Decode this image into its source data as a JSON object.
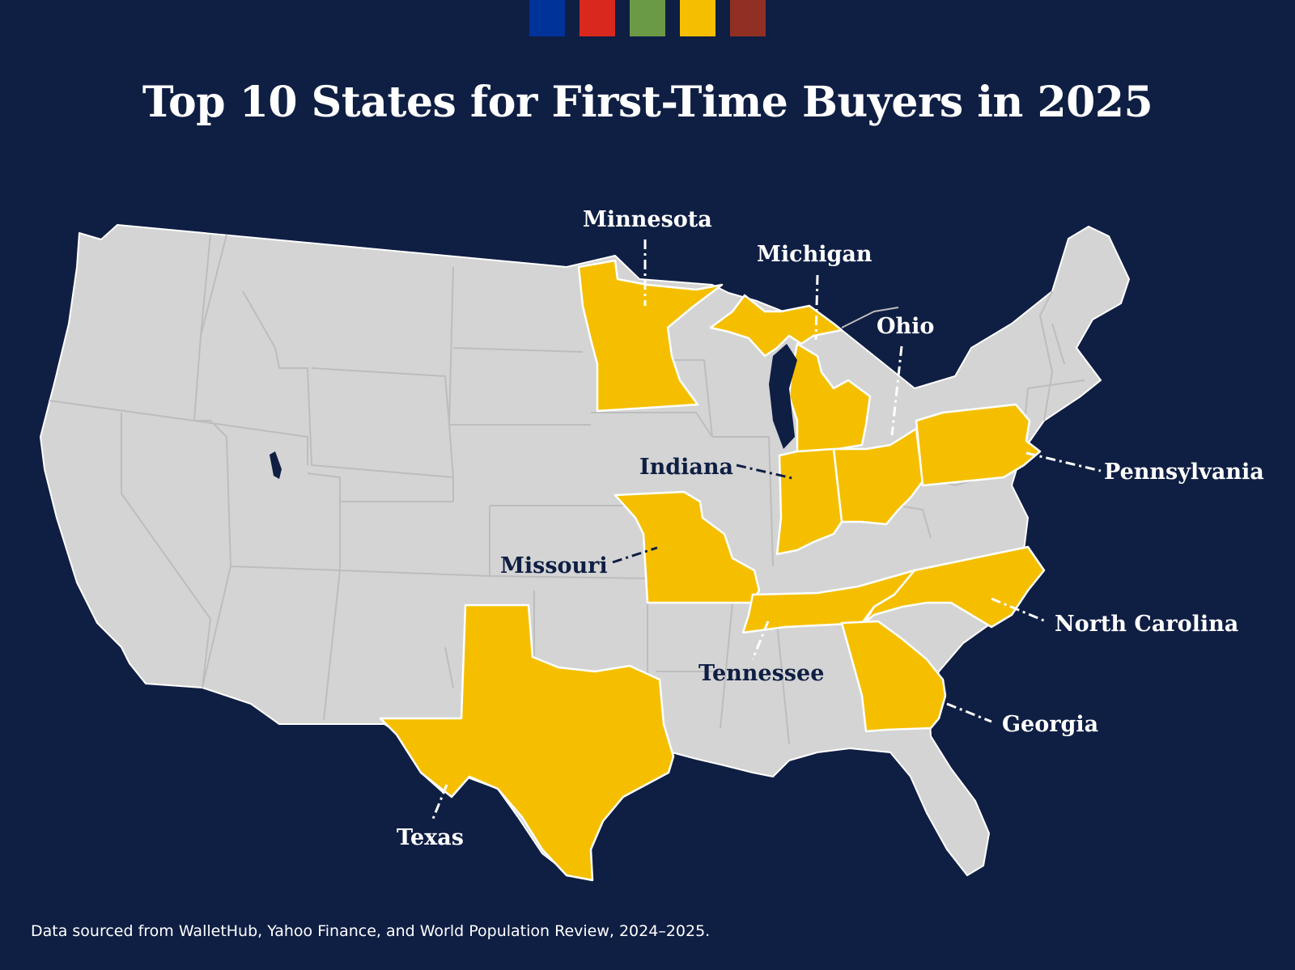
{
  "header": {
    "swatch_colors": [
      "#003399",
      "#d9281e",
      "#6b9a47",
      "#f5bf00",
      "#8f3023"
    ]
  },
  "title": "Top 10 States for First-Time Buyers in 2025",
  "map": {
    "base_color": "#d4d4d4",
    "highlight_color": "#f5bf00",
    "highlighted_states": [
      {
        "id": "minnesota",
        "label": "Minnesota"
      },
      {
        "id": "michigan",
        "label": "Michigan"
      },
      {
        "id": "ohio",
        "label": "Ohio"
      },
      {
        "id": "pennsylvania",
        "label": "Pennsylvania"
      },
      {
        "id": "indiana",
        "label": "Indiana"
      },
      {
        "id": "missouri",
        "label": "Missouri"
      },
      {
        "id": "north-carolina",
        "label": "North Carolina"
      },
      {
        "id": "tennessee",
        "label": "Tennessee"
      },
      {
        "id": "georgia",
        "label": "Georgia"
      },
      {
        "id": "texas",
        "label": "Texas"
      }
    ]
  },
  "footer": {
    "source": "Data sourced from WalletHub, Yahoo Finance, and World Population Review, 2024–2025."
  }
}
